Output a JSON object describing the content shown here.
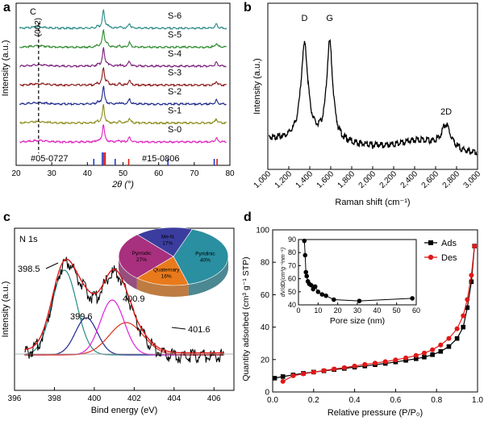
{
  "panels": {
    "a": {
      "letter": "a"
    },
    "b": {
      "letter": "b"
    },
    "c": {
      "letter": "c"
    },
    "d": {
      "letter": "d"
    }
  },
  "chart_data": [
    {
      "id": "a",
      "type": "line",
      "xlabel": "2θ (°)",
      "ylabel": "Intensity (a.u.)",
      "xlim": [
        20,
        80
      ],
      "xticks": [
        "20",
        "30",
        "40",
        "50",
        "60",
        "70",
        "80"
      ],
      "series": [
        {
          "name": "S-6",
          "color": "#2a8a86"
        },
        {
          "name": "S-5",
          "color": "#2e8b2e"
        },
        {
          "name": "S-4",
          "color": "#7a1e7a"
        },
        {
          "name": "S-3",
          "color": "#8b1a1a"
        },
        {
          "name": "S-2",
          "color": "#1f2a8a"
        },
        {
          "name": "S-1",
          "color": "#8c8c1a"
        },
        {
          "name": "S-0",
          "color": "#e020c0"
        }
      ],
      "peaks": [
        44.5,
        51.8,
        76.2
      ],
      "minor_peaks": [
        42.8,
        49.0
      ],
      "annotations": {
        "carbon_label": "C",
        "carbon_plane": "(002)",
        "carbon_position": 26.3
      },
      "references": [
        {
          "name": "#05-0727",
          "color": "#1a3ad0",
          "positions": [
            41.8,
            44.2,
            47.8,
            62.6,
            75.6
          ]
        },
        {
          "name": "#15-0806",
          "color": "#e01818",
          "positions": [
            44.6,
            45.0,
            51.6,
            76.4
          ]
        }
      ]
    },
    {
      "id": "b",
      "type": "line",
      "xlabel": "Raman shift (cm⁻¹)",
      "ylabel": "Intensity (a.u.)",
      "xlim": [
        1000,
        3000
      ],
      "xticks": [
        "1,000",
        "1,200",
        "1,400",
        "1,600",
        "1,800",
        "2,000",
        "2,200",
        "2,400",
        "2,600",
        "2,800",
        "3,000"
      ],
      "bands": [
        {
          "label": "D",
          "x": 1350
        },
        {
          "label": "G",
          "x": 1590
        },
        {
          "label": "2D",
          "x": 2700
        }
      ]
    },
    {
      "id": "c",
      "type": "line",
      "title": "N 1s",
      "xlabel": "Bind energy (eV)",
      "ylabel": "Intensity (a.u.)",
      "xlim": [
        396,
        407
      ],
      "xticks": [
        "396",
        "398",
        "400",
        "402",
        "404",
        "406"
      ],
      "peaks": [
        {
          "label": "398.5",
          "x": 398.5,
          "color": "#2a8a86"
        },
        {
          "label": "399.6",
          "x": 399.6,
          "color": "#1f2a8a"
        },
        {
          "label": "400.9",
          "x": 400.9,
          "color": "#e020e0"
        },
        {
          "label": "401.6",
          "x": 401.6,
          "color": "#d83020"
        }
      ],
      "inset_pie": [
        {
          "label": "Pyridinic",
          "percent": "40%",
          "value": 40,
          "color": "#2a8fa0"
        },
        {
          "label": "Quaternary",
          "percent": "16%",
          "value": 16,
          "color": "#e87a1c"
        },
        {
          "label": "Pyrrodic",
          "percent": "27%",
          "value": 27,
          "color": "#a8307e"
        },
        {
          "label": "Me-N",
          "percent": "17%",
          "value": 17,
          "color": "#3b3d9e"
        }
      ]
    },
    {
      "id": "d",
      "type": "line",
      "xlabel": "Relative pressure (P/P₀)",
      "ylabel": "Quantity adsorbed (cm³ g⁻¹ STP)",
      "xlim": [
        0,
        1.0
      ],
      "ylim": [
        0,
        100
      ],
      "xticks": [
        "0.0",
        "0.2",
        "0.4",
        "0.6",
        "0.8",
        "1.0"
      ],
      "yticks": [
        "0",
        "20",
        "40",
        "60",
        "80",
        "100"
      ],
      "legend": "top-right",
      "series": [
        {
          "name": "Ads",
          "color": "#000000",
          "marker": "square",
          "x": [
            0.01,
            0.05,
            0.1,
            0.15,
            0.2,
            0.25,
            0.3,
            0.35,
            0.4,
            0.45,
            0.5,
            0.55,
            0.6,
            0.65,
            0.7,
            0.74,
            0.78,
            0.82,
            0.86,
            0.9,
            0.93,
            0.95,
            0.97,
            0.985
          ],
          "y": [
            8.5,
            9.5,
            10.5,
            11.5,
            12.3,
            13.0,
            13.8,
            14.5,
            15.3,
            16.0,
            16.8,
            17.6,
            18.5,
            19.5,
            20.5,
            21.5,
            23,
            25,
            28,
            33,
            40,
            52,
            68,
            90
          ]
        },
        {
          "name": "Des",
          "color": "#e01818",
          "marker": "circle",
          "x": [
            0.05,
            0.1,
            0.15,
            0.2,
            0.25,
            0.3,
            0.35,
            0.4,
            0.45,
            0.5,
            0.55,
            0.6,
            0.65,
            0.7,
            0.74,
            0.78,
            0.82,
            0.86,
            0.9,
            0.93,
            0.95,
            0.97,
            0.985
          ],
          "y": [
            6.5,
            10,
            11.2,
            12.2,
            13.2,
            14.2,
            15,
            16,
            17,
            17.8,
            18.7,
            19.8,
            21,
            22.5,
            24,
            26,
            29,
            33,
            39,
            47,
            57,
            72,
            90
          ]
        }
      ],
      "inset": {
        "xlabel": "Pore size (nm)",
        "ylabel": "dV/dD(cm³g⁻¹nm⁻¹)",
        "xlim": [
          0,
          60
        ],
        "ylim": [
          40,
          90
        ],
        "xticks": [
          "0",
          "10",
          "20",
          "30",
          "40",
          "50",
          "60"
        ],
        "yticks": [
          "40",
          "50",
          "60",
          "70",
          "80",
          "90"
        ],
        "x": [
          3.0,
          3.4,
          3.8,
          4.2,
          4.8,
          5.5,
          6.5,
          7.5,
          8.5,
          10,
          12,
          14,
          18,
          31,
          58
        ],
        "y": [
          89,
          78,
          65,
          62,
          58,
          56,
          55,
          52,
          54,
          50,
          48,
          47,
          44,
          43,
          45
        ]
      }
    }
  ]
}
